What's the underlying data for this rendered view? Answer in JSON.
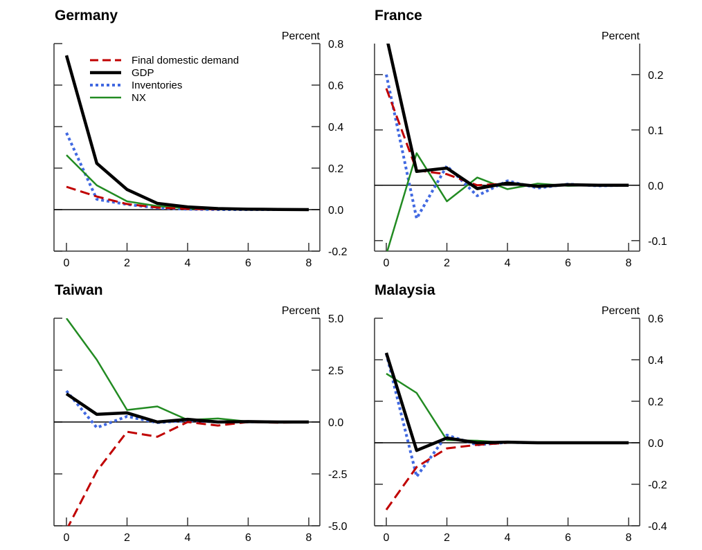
{
  "chart_data": [
    {
      "type": "line",
      "title": "Germany",
      "ylabel": "Percent",
      "xlabel": "",
      "x": [
        0,
        1,
        2,
        3,
        4,
        5,
        6,
        7,
        8
      ],
      "xlim": [
        0,
        8
      ],
      "ylim": [
        -0.2,
        0.8
      ],
      "xticks": [
        "0",
        "2",
        "4",
        "6",
        "8"
      ],
      "xtick_values": [
        0,
        2,
        4,
        6,
        8
      ],
      "yticks": [
        "-0.2",
        "0.0",
        "0.2",
        "0.4",
        "0.6",
        "0.8"
      ],
      "ytick_values": [
        -0.2,
        0.0,
        0.2,
        0.4,
        0.6,
        0.8
      ],
      "zero_line": true,
      "grid": false,
      "legend": "top-left",
      "series": [
        {
          "name": "Final domestic demand",
          "values": [
            0.11,
            0.063,
            0.027,
            0.01,
            0.004,
            0.002,
            0.001,
            0.0,
            0.0
          ]
        },
        {
          "name": "GDP",
          "values": [
            0.743,
            0.223,
            0.097,
            0.03,
            0.013,
            0.005,
            0.002,
            0.001,
            0.0
          ]
        },
        {
          "name": "Inventories",
          "values": [
            0.37,
            0.05,
            0.025,
            0.008,
            0.002,
            0.0,
            0.0,
            0.0,
            0.0
          ]
        },
        {
          "name": "NX",
          "values": [
            0.263,
            0.117,
            0.04,
            0.017,
            0.006,
            0.002,
            0.001,
            0.0,
            0.0
          ]
        }
      ]
    },
    {
      "type": "line",
      "title": "France",
      "ylabel": "Percent",
      "xlabel": "",
      "x": [
        0,
        1,
        2,
        3,
        4,
        5,
        6,
        7,
        8
      ],
      "xlim": [
        0,
        8
      ],
      "ylim": [
        -0.119,
        0.256
      ],
      "xticks": [
        "0",
        "2",
        "4",
        "6",
        "8"
      ],
      "xtick_values": [
        0,
        2,
        4,
        6,
        8
      ],
      "yticks": [
        "-0.1",
        "0.0",
        "0.1",
        "0.2"
      ],
      "ytick_values": [
        -0.1,
        0.0,
        0.1,
        0.2
      ],
      "zero_line": true,
      "grid": false,
      "legend": "none",
      "series": [
        {
          "name": "Final domestic demand",
          "values": [
            0.175,
            0.027,
            0.02,
            0.0,
            0.003,
            -0.001,
            0.001,
            0.0,
            0.0
          ]
        },
        {
          "name": "GDP",
          "values": [
            0.27,
            0.025,
            0.031,
            -0.006,
            0.004,
            -0.002,
            0.001,
            0.0,
            0.0
          ]
        },
        {
          "name": "Inventories",
          "values": [
            0.2,
            -0.06,
            0.035,
            -0.019,
            0.008,
            -0.005,
            0.002,
            -0.001,
            0.0
          ]
        },
        {
          "name": "NX",
          "values": [
            -0.125,
            0.058,
            -0.029,
            0.014,
            -0.007,
            0.003,
            -0.001,
            0.0,
            0.0
          ]
        }
      ]
    },
    {
      "type": "line",
      "title": "Taiwan",
      "ylabel": "Percent",
      "xlabel": "",
      "x": [
        0,
        1,
        2,
        3,
        4,
        5,
        6,
        7,
        8
      ],
      "xlim": [
        0,
        8
      ],
      "ylim": [
        -5.0,
        5.0
      ],
      "xticks": [
        "0",
        "2",
        "4",
        "6",
        "8"
      ],
      "xtick_values": [
        0,
        2,
        4,
        6,
        8
      ],
      "yticks": [
        "-5.0",
        "-2.5",
        "0.0",
        "2.5",
        "5.0"
      ],
      "ytick_values": [
        -5.0,
        -2.5,
        0.0,
        2.5,
        5.0
      ],
      "zero_line": true,
      "grid": false,
      "legend": "none",
      "series": [
        {
          "name": "Final domestic demand",
          "values": [
            -5.2,
            -2.37,
            -0.47,
            -0.71,
            0.0,
            -0.17,
            0.0,
            -0.03,
            0.0
          ]
        },
        {
          "name": "GDP",
          "values": [
            1.36,
            0.37,
            0.44,
            0.0,
            0.13,
            0.0,
            0.02,
            0.0,
            0.0
          ]
        },
        {
          "name": "Inventories",
          "values": [
            1.5,
            -0.27,
            0.27,
            -0.03,
            0.07,
            0.0,
            0.01,
            0.0,
            0.0
          ]
        },
        {
          "name": "NX",
          "values": [
            5.0,
            3.0,
            0.58,
            0.75,
            0.1,
            0.17,
            0.02,
            0.01,
            0.0
          ]
        }
      ]
    },
    {
      "type": "line",
      "title": "Malaysia",
      "ylabel": "Percent",
      "xlabel": "",
      "x": [
        0,
        1,
        2,
        3,
        4,
        5,
        6,
        7,
        8
      ],
      "xlim": [
        0,
        8
      ],
      "ylim": [
        -0.4,
        0.6
      ],
      "xticks": [
        "0",
        "2",
        "4",
        "6",
        "8"
      ],
      "xtick_values": [
        0,
        2,
        4,
        6,
        8
      ],
      "yticks": [
        "-0.4",
        "-0.2",
        "0.0",
        "0.2",
        "0.4",
        "0.6"
      ],
      "ytick_values": [
        -0.4,
        -0.2,
        0.0,
        0.2,
        0.4,
        0.6
      ],
      "zero_line": true,
      "grid": false,
      "legend": "none",
      "series": [
        {
          "name": "Final domestic demand",
          "values": [
            -0.323,
            -0.117,
            -0.027,
            -0.01,
            0.0,
            0.0,
            0.0,
            0.0,
            0.0
          ]
        },
        {
          "name": "GDP",
          "values": [
            0.433,
            -0.037,
            0.023,
            0.0,
            0.003,
            0.0,
            0.0,
            0.0,
            0.0
          ]
        },
        {
          "name": "Inventories",
          "values": [
            0.43,
            -0.163,
            0.037,
            -0.01,
            0.002,
            0.0,
            0.0,
            0.0,
            0.0
          ]
        },
        {
          "name": "NX",
          "values": [
            0.333,
            0.24,
            0.013,
            0.01,
            0.0,
            0.0,
            0.0,
            0.0,
            0.0
          ]
        }
      ]
    }
  ],
  "legend": {
    "entries": [
      {
        "name": "Final domestic demand",
        "style": "dashed",
        "color": "#c00000"
      },
      {
        "name": "GDP",
        "style": "solid-thick",
        "color": "#000000"
      },
      {
        "name": "Inventories",
        "style": "dotted",
        "color": "#4169e1"
      },
      {
        "name": "NX",
        "style": "solid",
        "color": "#228b22"
      }
    ]
  },
  "colors": {
    "Final domestic demand": "#c00000",
    "GDP": "#000000",
    "Inventories": "#4169e1",
    "NX": "#228b22",
    "axis": "#333333"
  }
}
